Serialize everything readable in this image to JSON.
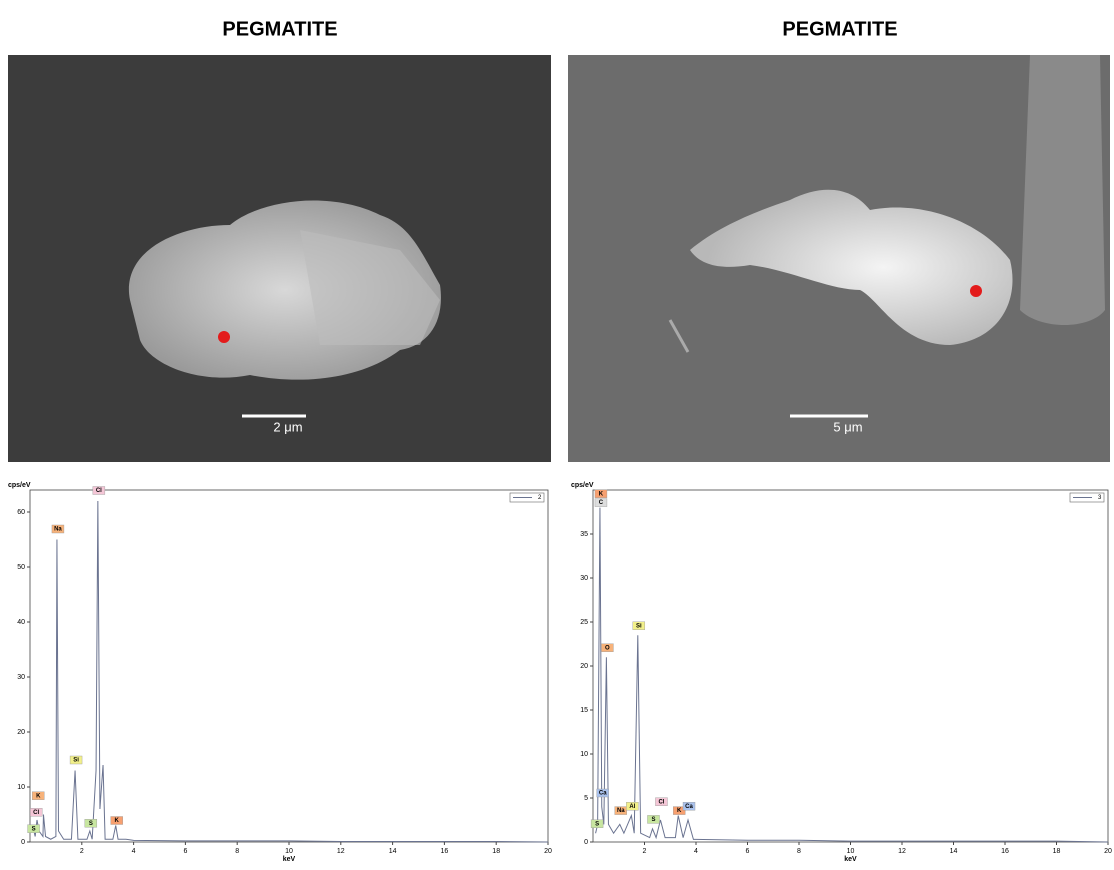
{
  "panels": [
    {
      "title": "PEGMATITE",
      "scale_label": "2 μm"
    },
    {
      "title": "PEGMATITE",
      "scale_label": "5 μm"
    }
  ],
  "chart_data": [
    {
      "type": "line",
      "y_label": "cps/eV",
      "x_label": "keV",
      "xlim": [
        0,
        20
      ],
      "ylim": [
        0,
        64
      ],
      "xticks": [
        2,
        4,
        6,
        8,
        10,
        12,
        14,
        16,
        18,
        20
      ],
      "yticks": [
        0,
        10,
        20,
        30,
        40,
        50,
        60
      ],
      "series": [
        {
          "name": "2",
          "color": "#6a7390",
          "x": [
            0.1,
            0.2,
            0.27,
            0.35,
            0.5,
            0.52,
            0.6,
            0.8,
            1.0,
            1.04,
            1.1,
            1.3,
            1.6,
            1.74,
            1.85,
            2.2,
            2.31,
            2.4,
            2.55,
            2.62,
            2.7,
            2.82,
            2.9,
            3.2,
            3.31,
            3.4,
            3.7,
            4,
            6,
            8,
            10,
            12,
            14,
            16,
            18,
            20
          ],
          "values": [
            3,
            1,
            4,
            2,
            1,
            5,
            1,
            0.5,
            1,
            55,
            2,
            0.5,
            0.5,
            13,
            0.5,
            0.5,
            2,
            0.5,
            13,
            62,
            6,
            14,
            0.5,
            0.5,
            3,
            0.5,
            0.5,
            0.3,
            0.2,
            0.2,
            0.2,
            0.1,
            0.1,
            0.1,
            0.1,
            0
          ]
        }
      ],
      "annotations": [
        {
          "label": "S",
          "x": 0.1,
          "y": 1.5,
          "color": "#c8e6a0"
        },
        {
          "label": "Cl",
          "x": 0.2,
          "y": 4.5,
          "color": "#f4c6d6"
        },
        {
          "label": "K",
          "x": 0.28,
          "y": 7.5,
          "color": "#f7b27a"
        },
        {
          "label": "Na",
          "x": 1.04,
          "y": 56,
          "color": "#f7b27a"
        },
        {
          "label": "Si",
          "x": 1.74,
          "y": 14,
          "color": "#f2f08a"
        },
        {
          "label": "S",
          "x": 2.31,
          "y": 2.5,
          "color": "#c8e6a0"
        },
        {
          "label": "Cl",
          "x": 2.62,
          "y": 63,
          "color": "#f4c6d6"
        },
        {
          "label": "K",
          "x": 3.31,
          "y": 3,
          "color": "#f7a070"
        }
      ]
    },
    {
      "type": "line",
      "y_label": "cps/eV",
      "x_label": "keV",
      "xlim": [
        0,
        20
      ],
      "ylim": [
        0,
        40
      ],
      "xticks": [
        2,
        4,
        6,
        8,
        10,
        12,
        14,
        16,
        18,
        20
      ],
      "yticks": [
        0,
        5,
        10,
        15,
        20,
        25,
        30,
        35
      ],
      "series": [
        {
          "name": "3",
          "color": "#6a7390",
          "x": [
            0.1,
            0.18,
            0.27,
            0.34,
            0.42,
            0.52,
            0.6,
            0.8,
            1.04,
            1.2,
            1.49,
            1.6,
            1.74,
            1.85,
            2.2,
            2.31,
            2.45,
            2.62,
            2.8,
            3.2,
            3.31,
            3.5,
            3.69,
            3.9,
            4,
            6,
            8,
            10,
            12,
            14,
            16,
            18,
            20
          ],
          "values": [
            1,
            2,
            38,
            4,
            2,
            21,
            2,
            1,
            2,
            1,
            3,
            1,
            23.5,
            1,
            0.5,
            1.5,
            0.5,
            2.5,
            0.5,
            0.5,
            3,
            0.5,
            2.5,
            0.3,
            0.3,
            0.2,
            0.2,
            0.1,
            0.1,
            0.1,
            0.1,
            0.1,
            0
          ]
        }
      ],
      "annotations": [
        {
          "label": "K",
          "x": 0.27,
          "y": 39,
          "color": "#f7a070"
        },
        {
          "label": "C",
          "x": 0.27,
          "y": 38,
          "color": "#dddddd"
        },
        {
          "label": "O",
          "x": 0.52,
          "y": 21.5,
          "color": "#f7b27a"
        },
        {
          "label": "Ca",
          "x": 0.34,
          "y": 5,
          "color": "#a9c1ec"
        },
        {
          "label": "S",
          "x": 0.12,
          "y": 1.5,
          "color": "#c8e6a0"
        },
        {
          "label": "Na",
          "x": 1.04,
          "y": 3,
          "color": "#f7b27a"
        },
        {
          "label": "Al",
          "x": 1.49,
          "y": 3.5,
          "color": "#f2f08a"
        },
        {
          "label": "Si",
          "x": 1.74,
          "y": 24,
          "color": "#f2f08a"
        },
        {
          "label": "S",
          "x": 2.31,
          "y": 2,
          "color": "#c8e6a0"
        },
        {
          "label": "Cl",
          "x": 2.62,
          "y": 4,
          "color": "#f4c6d6"
        },
        {
          "label": "K",
          "x": 3.31,
          "y": 3,
          "color": "#f7a070"
        },
        {
          "label": "Ca",
          "x": 3.69,
          "y": 3.5,
          "color": "#a9c1ec"
        }
      ]
    }
  ]
}
